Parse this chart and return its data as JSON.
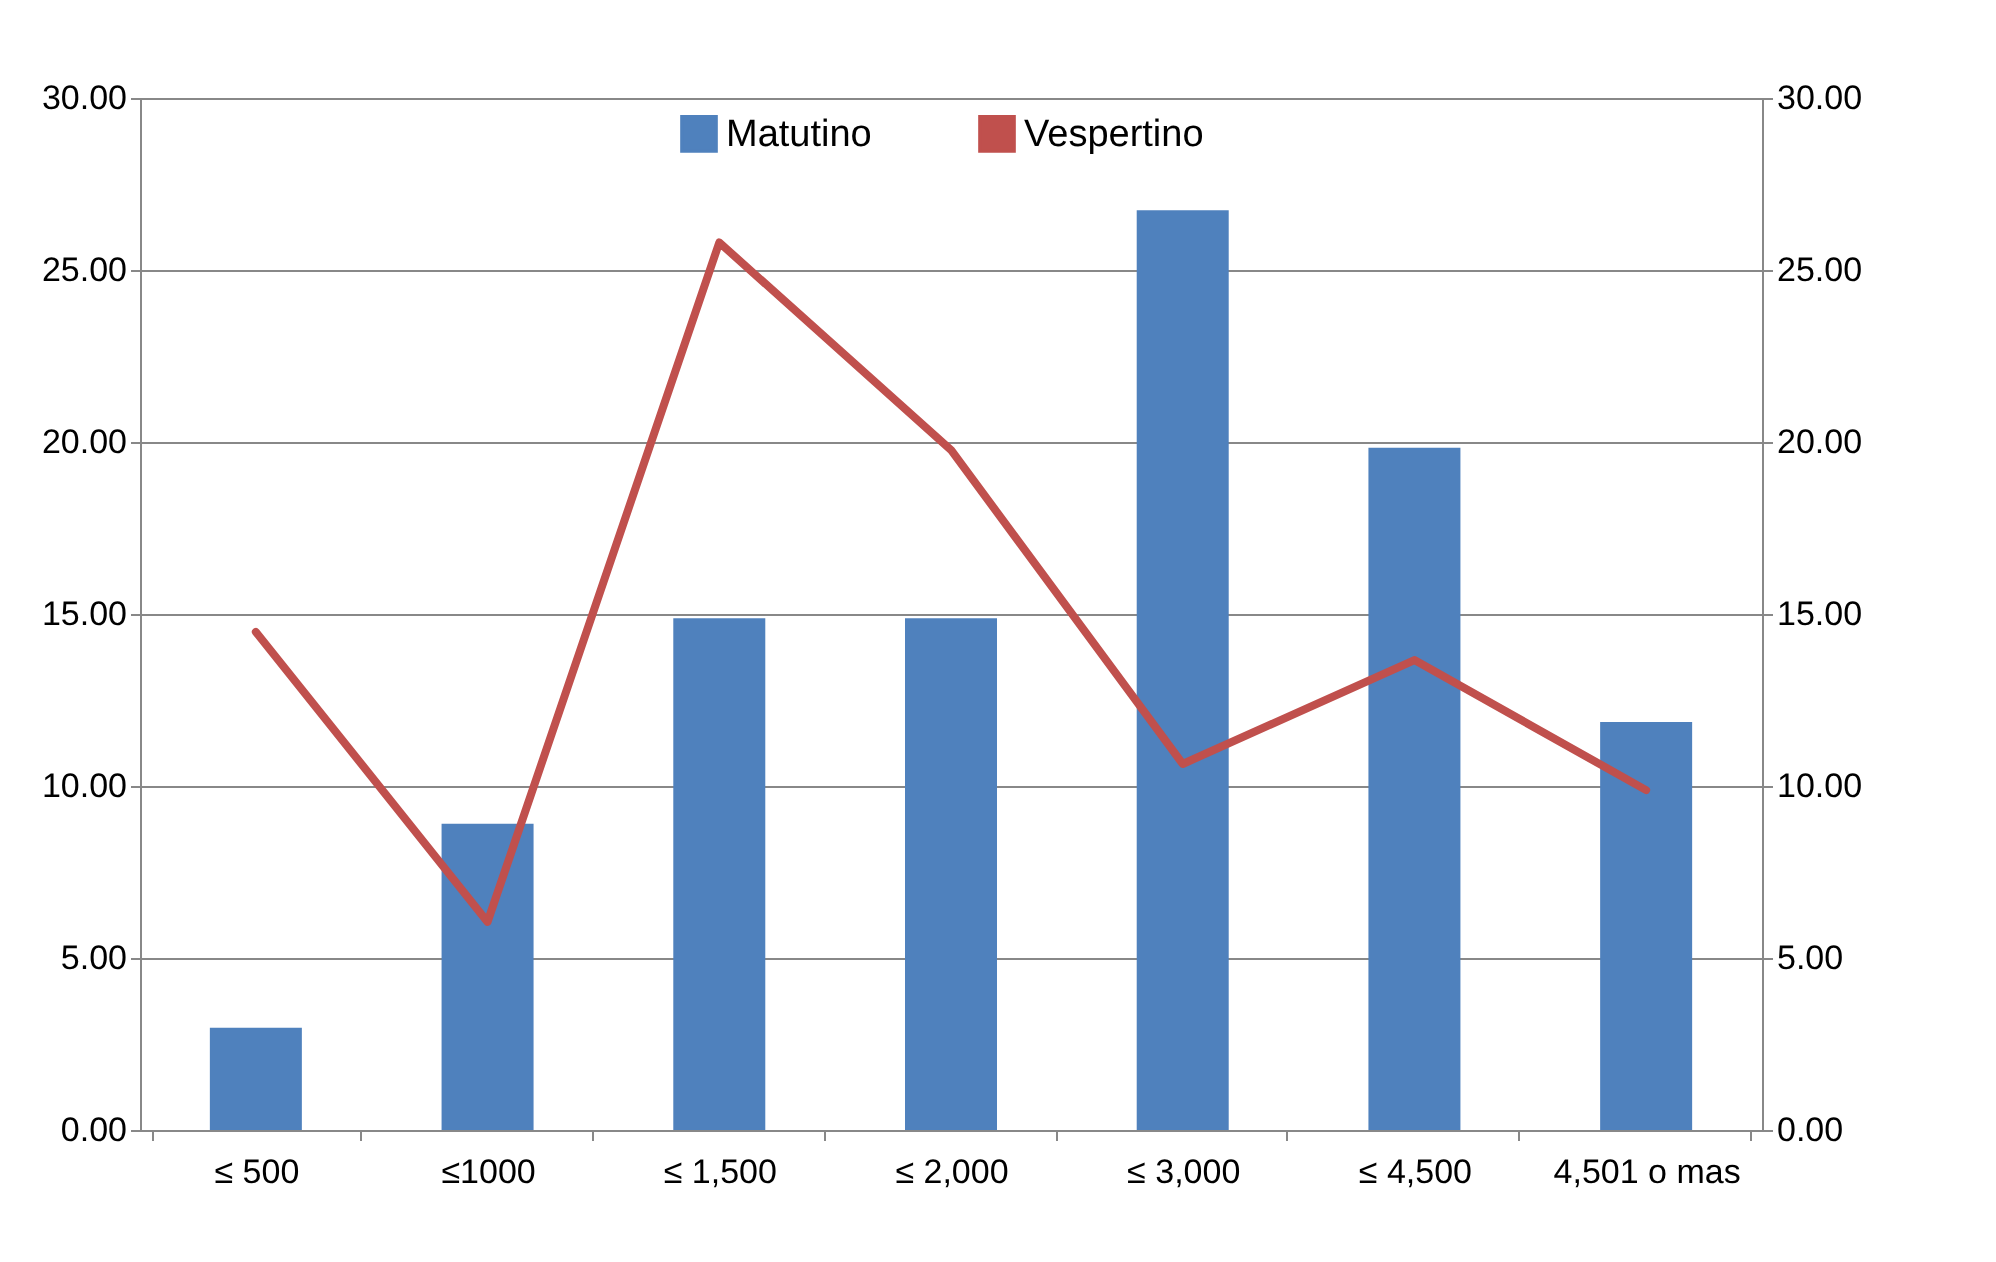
{
  "chart_data": {
    "type": "bar",
    "categories": [
      "≤ 500",
      "≤1000",
      "≤ 1,500",
      "≤ 2,000",
      "≤ 3,000",
      "≤ 4,500",
      "4,501 o mas"
    ],
    "series": [
      {
        "name": "Matutino",
        "color": "#4f81bd",
        "values": [
          2.97,
          8.9,
          14.88,
          14.88,
          26.74,
          19.83,
          11.86
        ]
      },
      {
        "name": "Vespertino",
        "type": "line",
        "axis": "y2",
        "color": "#c0504d",
        "values": [
          14.48,
          6.05,
          25.8,
          19.77,
          10.64,
          13.66,
          9.88
        ]
      }
    ],
    "ylim": [
      0,
      30
    ],
    "yticks": [
      {
        "value": 0,
        "label": "0.00"
      },
      {
        "value": 5,
        "label": "5.00"
      },
      {
        "value": 10,
        "label": "10.00"
      },
      {
        "value": 15,
        "label": "15.00"
      },
      {
        "value": 20,
        "label": "20.00"
      },
      {
        "value": 25,
        "label": "25.00"
      },
      {
        "value": 30,
        "label": "30.00"
      }
    ],
    "y2lim": [
      0,
      30
    ],
    "y2ticks": [
      {
        "value": 0,
        "label": "0.00"
      },
      {
        "value": 5,
        "label": "5.00"
      },
      {
        "value": 10,
        "label": "10.00"
      },
      {
        "value": 15,
        "label": "15.00"
      },
      {
        "value": 20,
        "label": "20.00"
      },
      {
        "value": 25,
        "label": "25.00"
      },
      {
        "value": 30,
        "label": "30.00"
      }
    ],
    "grid": "y",
    "legend": "top"
  }
}
